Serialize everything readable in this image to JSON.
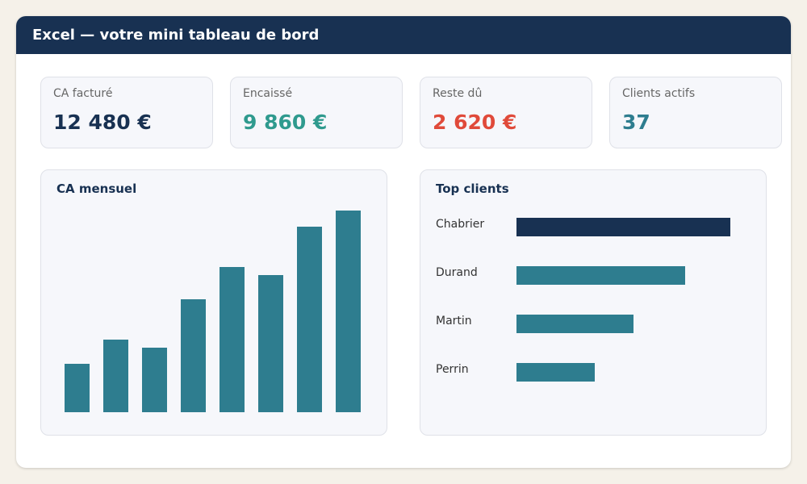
{
  "header": {
    "title": "Excel — votre mini tableau de bord"
  },
  "kpis": [
    {
      "label": "CA facturé",
      "value": "12 480 €",
      "color": "#183152"
    },
    {
      "label": "Encaissé",
      "value": "9 860 €",
      "color": "#2f9a8e"
    },
    {
      "label": "Reste dû",
      "value": "2 620 €",
      "color": "#e04a3a"
    },
    {
      "label": "Clients actifs",
      "value": "37",
      "color": "#2e7d8f"
    }
  ],
  "monthly": {
    "title": "CA mensuel"
  },
  "top_clients": {
    "title": "Top clients",
    "names": [
      "Chabrier",
      "Durand",
      "Martin",
      "Perrin"
    ]
  },
  "colors": {
    "header": "#183152",
    "bar": "#2e7d8f",
    "top_bar": "#183152",
    "panel": "#f6f7fb",
    "background": "#f5f1e9"
  },
  "chart_data": [
    {
      "type": "bar",
      "title": "CA mensuel",
      "categories": [
        "",
        "",
        "",
        "",
        "",
        "",
        "",
        ""
      ],
      "values": [
        3,
        4.5,
        4,
        7,
        9,
        8.5,
        11.5,
        12.5
      ],
      "ylim": [
        0,
        13
      ],
      "grid": false
    },
    {
      "type": "bar",
      "orientation": "horizontal",
      "title": "Top clients",
      "categories": [
        "Chabrier",
        "Durand",
        "Martin",
        "Perrin"
      ],
      "values": [
        265,
        209,
        145,
        97
      ],
      "xlim": [
        0,
        290
      ],
      "grid": false
    }
  ]
}
